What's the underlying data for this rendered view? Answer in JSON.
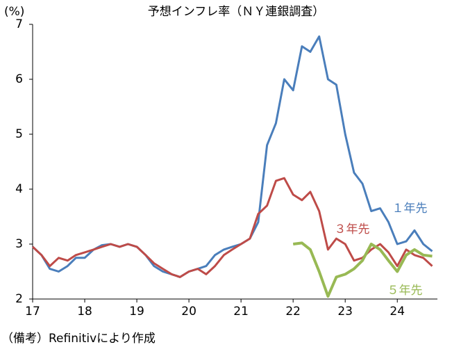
{
  "chart_data": {
    "type": "line",
    "title": "予想インフレ率（ＮＹ連銀調査）",
    "y_unit": "(%)",
    "note": "（備考）Refinitivにより作成",
    "x": [
      17,
      17.17,
      17.33,
      17.5,
      17.67,
      17.83,
      18,
      18.17,
      18.33,
      18.5,
      18.67,
      18.83,
      19,
      19.17,
      19.33,
      19.5,
      19.67,
      19.83,
      20,
      20.17,
      20.33,
      20.5,
      20.67,
      20.83,
      21,
      21.17,
      21.33,
      21.5,
      21.67,
      21.83,
      22,
      22.17,
      22.33,
      22.5,
      22.67,
      22.83,
      23,
      23.17,
      23.33,
      23.5,
      23.67,
      23.83,
      24,
      24.17,
      24.33,
      24.5,
      24.67
    ],
    "series": [
      {
        "name": "１年先",
        "color": "#4a7ebb",
        "values": [
          2.95,
          2.8,
          2.55,
          2.5,
          2.6,
          2.75,
          2.75,
          2.9,
          2.98,
          3.0,
          2.95,
          3.0,
          2.95,
          2.8,
          2.6,
          2.5,
          2.45,
          2.4,
          2.5,
          2.55,
          2.6,
          2.8,
          2.9,
          2.95,
          3.0,
          3.1,
          3.4,
          4.8,
          5.2,
          6.0,
          5.8,
          6.6,
          6.5,
          6.78,
          6.0,
          5.9,
          5.0,
          4.3,
          4.1,
          3.6,
          3.65,
          3.4,
          3.0,
          3.05,
          3.25,
          3.0,
          2.87
        ]
      },
      {
        "name": "３年先",
        "color": "#be4b48",
        "values": [
          2.95,
          2.8,
          2.6,
          2.75,
          2.7,
          2.8,
          2.85,
          2.9,
          2.95,
          3.0,
          2.95,
          3.0,
          2.95,
          2.8,
          2.65,
          2.55,
          2.45,
          2.4,
          2.5,
          2.55,
          2.45,
          2.6,
          2.8,
          2.9,
          3.0,
          3.1,
          3.55,
          3.7,
          4.15,
          4.2,
          3.9,
          3.8,
          3.95,
          3.6,
          2.9,
          3.1,
          3.0,
          2.7,
          2.75,
          2.9,
          3.0,
          2.85,
          2.6,
          2.9,
          2.8,
          2.75,
          2.6
        ]
      },
      {
        "name": "５年先",
        "color": "#98b954",
        "values": [
          null,
          null,
          null,
          null,
          null,
          null,
          null,
          null,
          null,
          null,
          null,
          null,
          null,
          null,
          null,
          null,
          null,
          null,
          null,
          null,
          null,
          null,
          null,
          null,
          null,
          null,
          null,
          null,
          null,
          null,
          3.0,
          3.02,
          2.9,
          2.5,
          2.05,
          2.4,
          2.45,
          2.55,
          2.7,
          3.0,
          2.9,
          2.7,
          2.5,
          2.8,
          2.9,
          2.8,
          2.78
        ]
      }
    ],
    "xlim": [
      17,
      24.77
    ],
    "xticks": [
      17,
      18,
      19,
      20,
      21,
      22,
      23,
      24
    ],
    "ylim": [
      2,
      7
    ],
    "yticks": [
      2,
      3,
      4,
      5,
      6,
      7
    ]
  }
}
